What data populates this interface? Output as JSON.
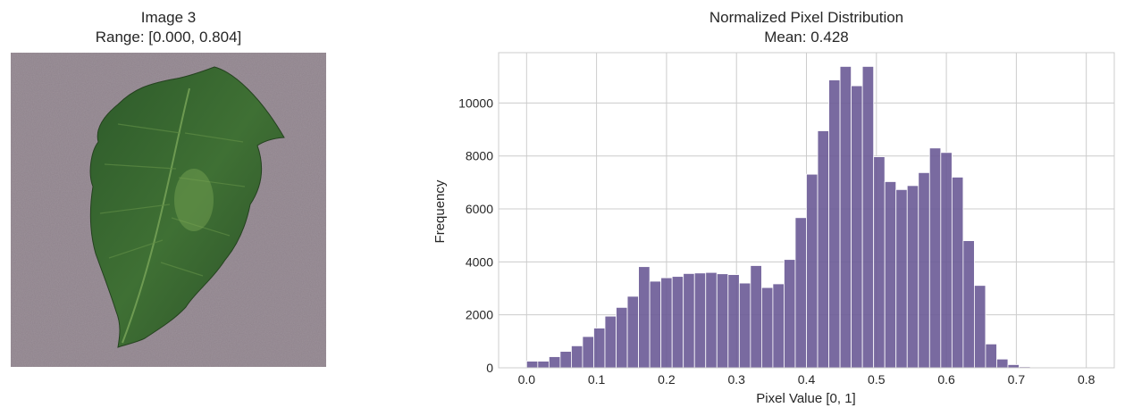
{
  "left_panel": {
    "title": "Image 3",
    "subtitle": "Range: [0.000, 0.804]",
    "image": {
      "depicts": "leaf",
      "background_color": "#8f838c",
      "leaf_colors": [
        "#2f5a2c",
        "#3f6f34",
        "#6a9a4a"
      ]
    }
  },
  "chart_data": {
    "type": "bar",
    "title": "Normalized Pixel Distribution",
    "subtitle": "Mean: 0.428",
    "xlabel": "Pixel Value [0, 1]",
    "ylabel": "Frequency",
    "xlim": [
      -0.04,
      0.84
    ],
    "ylim": [
      0,
      11900
    ],
    "xticks": [
      0.0,
      0.1,
      0.2,
      0.3,
      0.4,
      0.5,
      0.6,
      0.7,
      0.8
    ],
    "xtick_labels": [
      "0.0",
      "0.1",
      "0.2",
      "0.3",
      "0.4",
      "0.5",
      "0.6",
      "0.7",
      "0.8"
    ],
    "yticks": [
      0,
      2000,
      4000,
      6000,
      8000,
      10000
    ],
    "ytick_labels": [
      "0",
      "2000",
      "4000",
      "6000",
      "8000",
      "10000"
    ],
    "grid": true,
    "bar_color": "#6a5a96",
    "bin_edges": [
      0.0,
      0.016,
      0.032,
      0.048,
      0.064,
      0.08,
      0.096,
      0.112,
      0.128,
      0.144,
      0.16,
      0.176,
      0.192,
      0.208,
      0.224,
      0.24,
      0.256,
      0.272,
      0.288,
      0.304,
      0.32,
      0.336,
      0.352,
      0.368,
      0.384,
      0.4,
      0.416,
      0.432,
      0.448,
      0.464,
      0.48,
      0.496,
      0.512,
      0.528,
      0.544,
      0.56,
      0.576,
      0.592,
      0.608,
      0.624,
      0.64,
      0.656,
      0.672,
      0.688,
      0.704,
      0.72,
      0.736,
      0.752,
      0.768,
      0.784,
      0.8
    ],
    "values": [
      250,
      250,
      420,
      620,
      830,
      1180,
      1500,
      1950,
      2280,
      2700,
      3820,
      3270,
      3400,
      3450,
      3560,
      3580,
      3600,
      3550,
      3520,
      3200,
      3860,
      3030,
      3170,
      4090,
      5670,
      7310,
      8950,
      10870,
      11380,
      10650,
      11380,
      7970,
      7030,
      6730,
      6880,
      7370,
      8300,
      8130,
      7200,
      4800,
      3110,
      900,
      330,
      120,
      40,
      15,
      8,
      5,
      3,
      2
    ]
  }
}
